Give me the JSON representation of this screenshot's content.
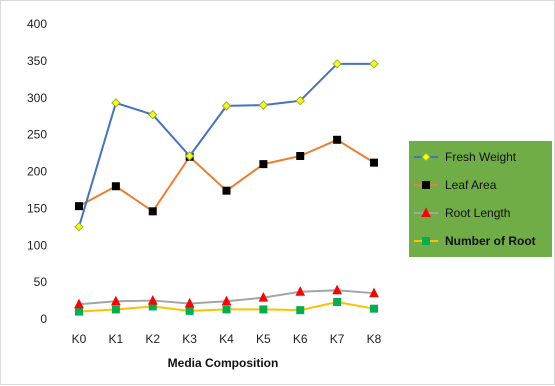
{
  "chart_data": {
    "type": "line",
    "title": "",
    "xlabel": "Media Composition",
    "ylabel": "",
    "categories": [
      "K0",
      "K1",
      "K2",
      "K3",
      "K4",
      "K5",
      "K6",
      "K7",
      "K8"
    ],
    "ylim": [
      0,
      400
    ],
    "yticks": [
      0,
      50,
      100,
      150,
      200,
      250,
      300,
      350,
      400
    ],
    "grid": false,
    "legend_position": "right",
    "legend_background": "#70ad47",
    "series": [
      {
        "name": "Fresh Weight",
        "values": [
          125,
          293,
          277,
          221,
          289,
          290,
          296,
          346,
          346
        ],
        "line_color": "#4472c4",
        "marker": "diamond",
        "marker_fill": "#ffff00",
        "marker_stroke": "#8db33d"
      },
      {
        "name": "Leaf Area",
        "values": [
          153,
          180,
          146,
          220,
          174,
          210,
          221,
          243,
          212
        ],
        "line_color": "#ed7d31",
        "marker": "square",
        "marker_fill": "#000000",
        "marker_stroke": "#000000"
      },
      {
        "name": "Root Length",
        "values": [
          20,
          24,
          25,
          21,
          24,
          29,
          37,
          39,
          35
        ],
        "line_color": "#a5a5a5",
        "marker": "triangle",
        "marker_fill": "#ff0000",
        "marker_stroke": "#ff0000"
      },
      {
        "name": "Number of Root",
        "values": [
          10,
          13,
          17,
          11,
          13,
          13,
          12,
          23,
          14
        ],
        "line_color": "#ffc000",
        "marker": "square",
        "marker_fill": "#00b050",
        "marker_stroke": "#00b050"
      }
    ]
  }
}
